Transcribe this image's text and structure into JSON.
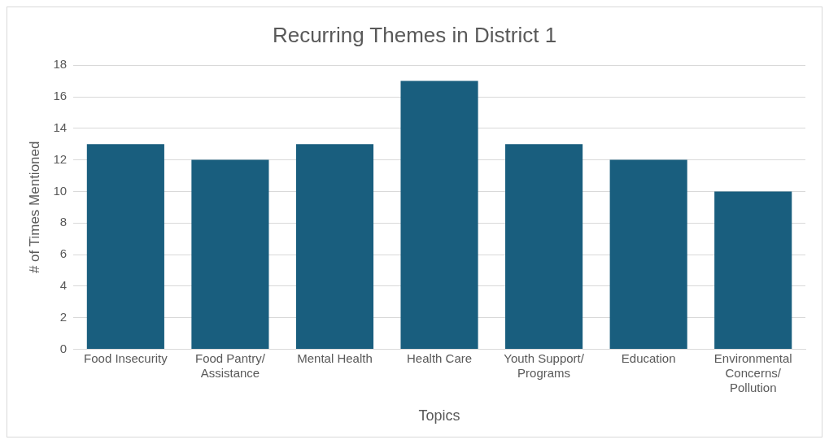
{
  "chart_data": {
    "type": "bar",
    "title": "Recurring Themes in District 1",
    "xlabel": "Topics",
    "ylabel": "# of Times Mentioned",
    "categories": [
      "Food Insecurity",
      "Food Pantry/\nAssistance",
      "Mental Health",
      "Health Care",
      "Youth Support/\nPrograms",
      "Education",
      "Environmental\nConcerns/\nPollution"
    ],
    "values": [
      13,
      12,
      13,
      17,
      13,
      12,
      10
    ],
    "color": "#195e7e",
    "ylim": [
      0,
      18
    ],
    "yticks": [
      0,
      2,
      4,
      6,
      8,
      10,
      12,
      14,
      16,
      18
    ],
    "grid": "y",
    "legend": false
  }
}
